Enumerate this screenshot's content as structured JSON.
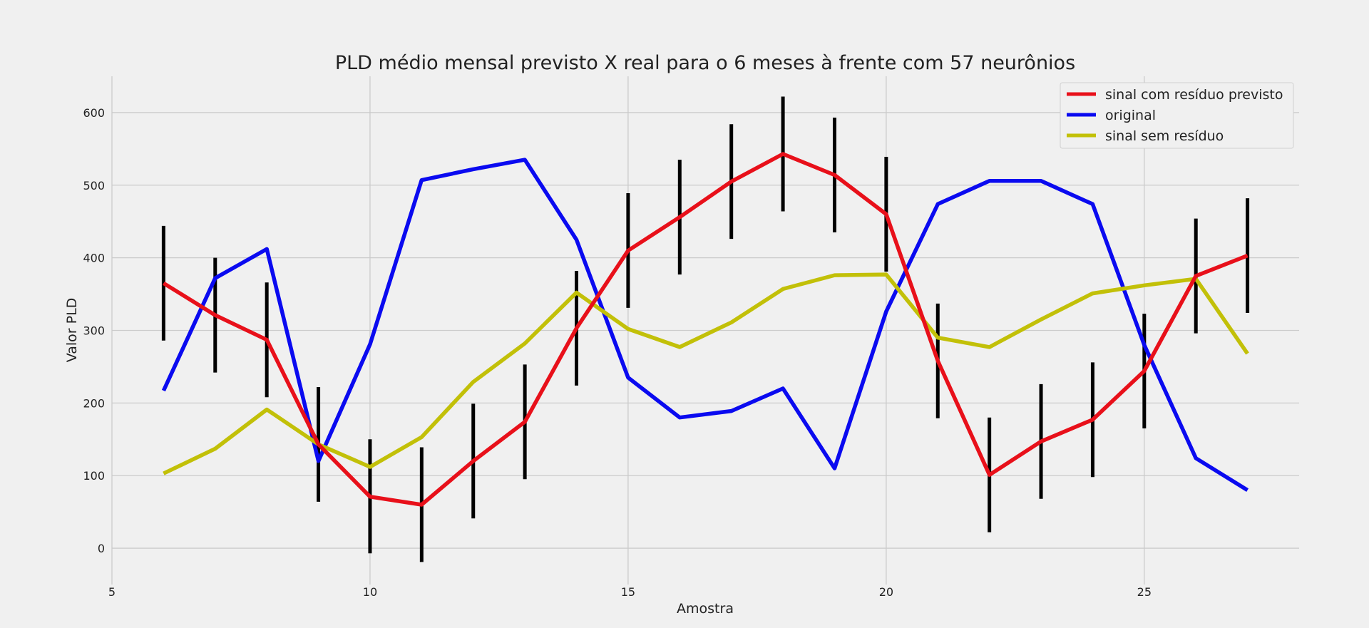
{
  "chart_data": {
    "type": "line",
    "title": "PLD médio mensal previsto X real para o 6 meses à frente com 57 neurônios",
    "xlabel": "Amostra",
    "ylabel": "Valor PLD",
    "xlim": [
      5,
      28
    ],
    "ylim": [
      -50,
      650
    ],
    "xticks": [
      5,
      10,
      15,
      20,
      25
    ],
    "yticks": [
      0,
      100,
      200,
      300,
      400,
      500,
      600
    ],
    "grid": true,
    "legend_position": "top-right",
    "x": [
      6,
      7,
      8,
      9,
      10,
      11,
      12,
      13,
      14,
      15,
      16,
      17,
      18,
      19,
      20,
      21,
      22,
      23,
      24,
      25,
      26,
      27
    ],
    "series": [
      {
        "name": "sinal com resíduo previsto",
        "color": "#e8101a",
        "values": [
          365,
          321,
          287,
          143,
          71,
          60,
          120,
          174,
          303,
          410,
          456,
          505,
          543,
          514,
          460,
          258,
          101,
          147,
          177,
          244,
          375,
          403
        ],
        "error_bars": {
          "color": "#000000",
          "lower": [
            286,
            242,
            208,
            64,
            -7,
            -19,
            41,
            95,
            224,
            331,
            377,
            426,
            464,
            435,
            381,
            179,
            22,
            68,
            98,
            165,
            296,
            324
          ],
          "upper": [
            444,
            400,
            366,
            222,
            150,
            139,
            199,
            253,
            382,
            489,
            535,
            584,
            622,
            593,
            539,
            337,
            180,
            226,
            256,
            323,
            454,
            482
          ]
        }
      },
      {
        "name": "original",
        "color": "#0a0af0",
        "values": [
          217,
          372,
          412,
          120,
          281,
          507,
          522,
          535,
          425,
          235,
          180,
          189,
          220,
          110,
          326,
          474,
          506,
          506,
          474,
          280,
          124,
          80
        ]
      },
      {
        "name": "sinal sem resíduo",
        "color": "#c2c008",
        "values": [
          103,
          137,
          191,
          143,
          112,
          153,
          229,
          282,
          352,
          302,
          277,
          311,
          357,
          376,
          377,
          290,
          277,
          315,
          351,
          362,
          371,
          268
        ]
      }
    ]
  }
}
